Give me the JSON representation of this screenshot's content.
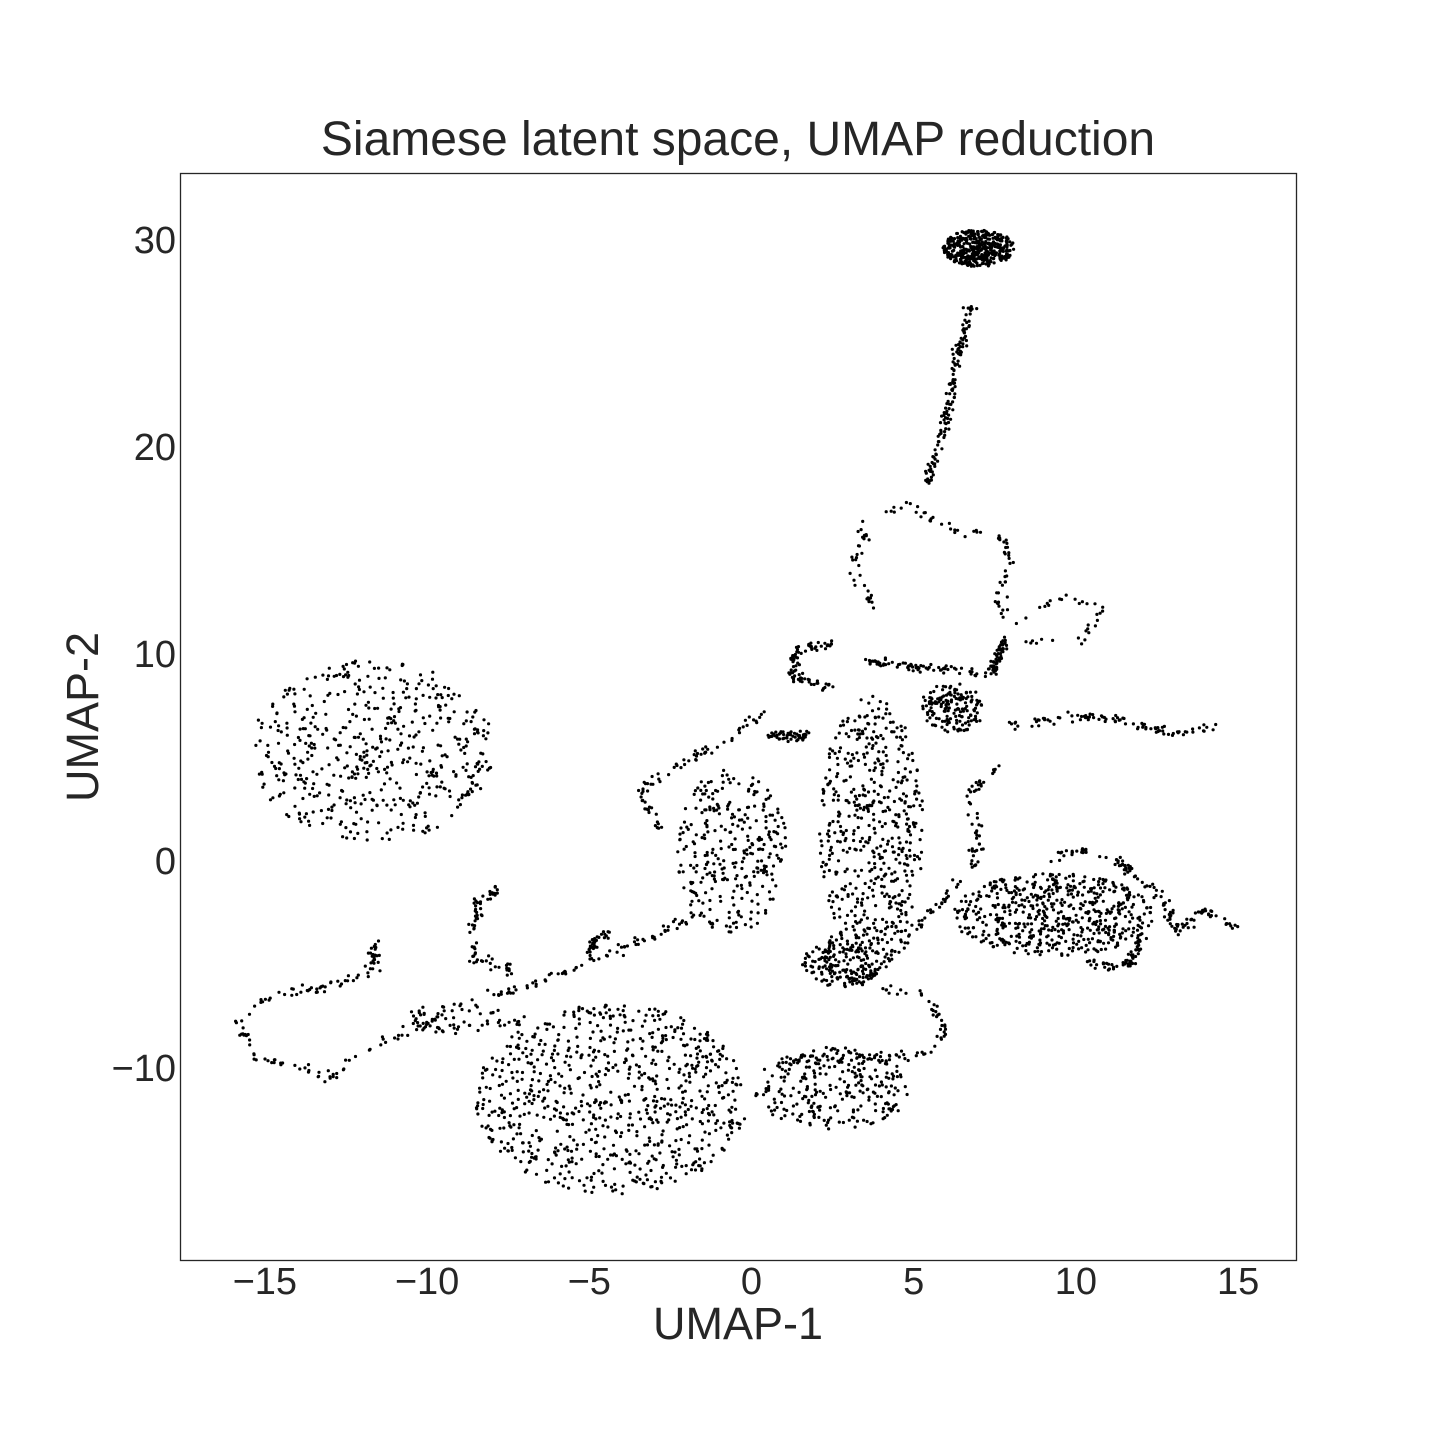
{
  "chart_data": {
    "type": "scatter",
    "title": "Siamese latent space, UMAP reduction",
    "xlabel": "UMAP-1",
    "ylabel": "UMAP-2",
    "xlim": [
      -17.6,
      16.8
    ],
    "ylim": [
      -19.3,
      33.2
    ],
    "xticks": [
      -15,
      -10,
      -5,
      0,
      5,
      10,
      15
    ],
    "xtick_labels": [
      "−15",
      "−10",
      "−5",
      "0",
      "5",
      "10",
      "15"
    ],
    "yticks": [
      -10,
      0,
      10,
      20,
      30
    ],
    "ytick_labels": [
      "−10",
      "0",
      "10",
      "20",
      "30"
    ],
    "grid": false,
    "legend": "none",
    "colors": {
      "points": "#000000",
      "text": "#262626",
      "frame": "#262626"
    },
    "series": [
      {
        "description_clusters": [
          {
            "kind": "blob",
            "center": [
              7.0,
              29.6
            ],
            "rx": 1.1,
            "ry": 0.9,
            "n": 420
          },
          {
            "kind": "blob",
            "center": [
              -11.7,
              5.3
            ],
            "rx": 3.8,
            "ry": 4.4,
            "n": 520
          },
          {
            "kind": "blob",
            "center": [
              -4.3,
              -11.5
            ],
            "rx": 4.2,
            "ry": 4.6,
            "n": 800
          },
          {
            "kind": "blob",
            "center": [
              2.5,
              -11.0
            ],
            "rx": 2.4,
            "ry": 2.0,
            "n": 260
          },
          {
            "kind": "blob",
            "center": [
              3.7,
              1.5
            ],
            "rx": 1.6,
            "ry": 6.5,
            "n": 520
          },
          {
            "kind": "blob",
            "center": [
              -0.6,
              0.5
            ],
            "rx": 1.7,
            "ry": 4.0,
            "n": 300
          },
          {
            "kind": "blob",
            "center": [
              9.3,
              -2.6
            ],
            "rx": 3.1,
            "ry": 2.0,
            "n": 560
          },
          {
            "kind": "blob",
            "center": [
              6.2,
              7.4
            ],
            "rx": 1.0,
            "ry": 1.2,
            "n": 160
          },
          {
            "kind": "blob",
            "center": [
              2.8,
              -5.0
            ],
            "rx": 1.3,
            "ry": 1.1,
            "n": 140
          }
        ],
        "paths": [
          {
            "n": 140,
            "pts": [
              [
                6.8,
                27.0
              ],
              [
                6.3,
                24.0
              ],
              [
                6.0,
                21.0
              ],
              [
                5.4,
                18.4
              ]
            ]
          },
          {
            "n": 130,
            "pts": [
              [
                3.8,
                12.2
              ],
              [
                3.1,
                14.1
              ],
              [
                3.6,
                16.3
              ],
              [
                4.8,
                17.3
              ],
              [
                6.2,
                16.0
              ],
              [
                7.6,
                15.7
              ],
              [
                8.0,
                14.6
              ],
              [
                7.6,
                12.7
              ],
              [
                7.9,
                11.2
              ],
              [
                9.6,
                12.7
              ],
              [
                10.8,
                12.2
              ],
              [
                10.1,
                10.6
              ],
              [
                8.5,
                10.6
              ]
            ]
          },
          {
            "n": 60,
            "pts": [
              [
                7.8,
                10.6
              ],
              [
                7.4,
                9.2
              ]
            ]
          },
          {
            "n": 90,
            "pts": [
              [
                8.0,
                6.5
              ],
              [
                10.0,
                7.0
              ],
              [
                11.5,
                6.8
              ],
              [
                13.0,
                6.1
              ],
              [
                14.5,
                6.4
              ]
            ]
          },
          {
            "n": 80,
            "pts": [
              [
                2.8,
                10.6
              ],
              [
                1.4,
                10.2
              ],
              [
                1.2,
                9.0
              ],
              [
                2.4,
                8.4
              ]
            ]
          },
          {
            "n": 70,
            "pts": [
              [
                3.6,
                9.6
              ],
              [
                5.5,
                9.3
              ],
              [
                7.2,
                9.0
              ]
            ]
          },
          {
            "n": 70,
            "pts": [
              [
                -2.8,
                1.6
              ],
              [
                -3.5,
                3.3
              ],
              [
                -2.5,
                4.5
              ],
              [
                -1.0,
                5.6
              ],
              [
                0.5,
                7.3
              ]
            ]
          },
          {
            "n": 50,
            "pts": [
              [
                0.6,
                6.1
              ],
              [
                1.8,
                6.0
              ]
            ]
          },
          {
            "n": 50,
            "pts": [
              [
                7.6,
                4.5
              ],
              [
                6.7,
                3.2
              ],
              [
                7.0,
                1.3
              ],
              [
                6.8,
                -0.4
              ]
            ]
          },
          {
            "n": 120,
            "pts": [
              [
                15.0,
                -3.3
              ],
              [
                14.0,
                -2.3
              ],
              [
                13.2,
                -3.5
              ],
              [
                12.6,
                -1.8
              ],
              [
                11.3,
                0.0
              ],
              [
                10.0,
                0.6
              ],
              [
                9.0,
                0.0
              ]
            ]
          },
          {
            "n": 60,
            "pts": [
              [
                12.1,
                -3.7
              ],
              [
                11.5,
                -5.1
              ],
              [
                10.3,
                -4.9
              ]
            ]
          },
          {
            "n": 220,
            "pts": [
              [
                -1.6,
                -2.5
              ],
              [
                -3.5,
                -4.0
              ],
              [
                -5.5,
                -5.2
              ],
              [
                -7.5,
                -6.3
              ],
              [
                -9.5,
                -7.5
              ],
              [
                -11.5,
                -8.8
              ],
              [
                -13.0,
                -10.5
              ],
              [
                -15.2,
                -9.5
              ],
              [
                -15.9,
                -7.9
              ],
              [
                -15.0,
                -6.6
              ],
              [
                -13.0,
                -6.1
              ],
              [
                -11.7,
                -5.3
              ],
              [
                -11.5,
                -3.8
              ]
            ]
          },
          {
            "n": 70,
            "pts": [
              [
                -7.7,
                -1.3
              ],
              [
                -8.4,
                -1.9
              ],
              [
                -8.6,
                -3.5
              ],
              [
                -8.5,
                -4.8
              ],
              [
                -7.7,
                -5.0
              ],
              [
                -7.3,
                -5.4
              ]
            ]
          },
          {
            "n": 30,
            "pts": [
              [
                -4.3,
                -3.3
              ],
              [
                -5.0,
                -4.0
              ],
              [
                -4.9,
                -4.5
              ]
            ]
          },
          {
            "n": 60,
            "pts": [
              [
                -7.6,
                -7.4
              ],
              [
                -8.9,
                -7.1
              ],
              [
                -10.5,
                -7.4
              ],
              [
                -10.2,
                -8.2
              ],
              [
                -8.8,
                -8.0
              ],
              [
                -7.0,
                -7.8
              ]
            ]
          },
          {
            "n": 90,
            "pts": [
              [
                0.5,
                -10.1
              ],
              [
                1.5,
                -9.6
              ],
              [
                3.5,
                -9.5
              ],
              [
                5.5,
                -9.3
              ],
              [
                6.0,
                -8.1
              ],
              [
                5.4,
                -6.5
              ],
              [
                4.0,
                -6.2
              ]
            ]
          },
          {
            "n": 100,
            "pts": [
              [
                6.6,
                -0.6
              ],
              [
                5.3,
                -2.8
              ],
              [
                4.2,
                -4.8
              ],
              [
                3.5,
                -6.0
              ],
              [
                2.5,
                -5.2
              ],
              [
                2.3,
                -4.0
              ],
              [
                3.3,
                -3.5
              ],
              [
                4.2,
                -3.9
              ]
            ]
          }
        ]
      }
    ]
  }
}
